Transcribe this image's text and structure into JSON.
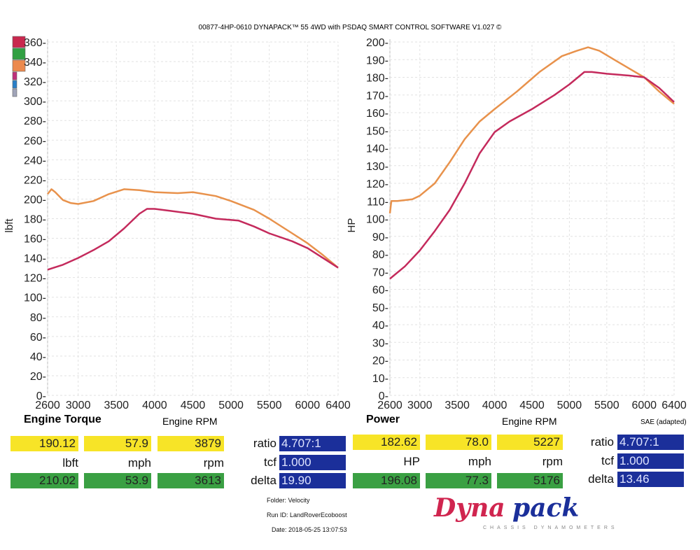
{
  "header": "00877-4HP-0610 DYNAPACK™ 55 4WD with PSDAQ SMART CONTROL SOFTWARE V1.027 ©",
  "colors": {
    "run1": "#c42a5c",
    "run2": "#e8924c",
    "yellow": "#f7e427",
    "green": "#3aa043",
    "blue": "#1b2f9a"
  },
  "legend_swatches": [
    "#c9284e",
    "#32a043",
    "#ec8a4e",
    "#c0307a",
    "#2a7fc8",
    "#a0a4b8"
  ],
  "chart_data": [
    {
      "type": "line",
      "title": "Engine Torque",
      "xlabel": "Engine RPM",
      "ylabel": "lbft",
      "xlim": [
        2600,
        6400
      ],
      "ylim": [
        0,
        360
      ],
      "xticks": [
        2600,
        3000,
        3500,
        4000,
        4500,
        5000,
        5500,
        6000,
        6400
      ],
      "yticks": [
        0,
        20,
        40,
        60,
        80,
        100,
        120,
        140,
        160,
        180,
        200,
        220,
        240,
        260,
        280,
        300,
        320,
        340,
        360
      ],
      "grid": true,
      "series": [
        {
          "color": "#e8924c",
          "x": [
            2600,
            2650,
            2700,
            2800,
            2900,
            3000,
            3200,
            3400,
            3600,
            3800,
            4000,
            4300,
            4500,
            4800,
            5000,
            5300,
            5500,
            5800,
            6000,
            6200,
            6400
          ],
          "y": [
            205,
            210,
            207,
            199,
            196,
            195,
            198,
            205,
            210,
            209,
            207,
            206,
            207,
            203,
            198,
            189,
            180,
            165,
            155,
            143,
            130
          ]
        },
        {
          "color": "#c42a5c",
          "x": [
            2600,
            2800,
            3000,
            3200,
            3400,
            3600,
            3800,
            3900,
            4000,
            4200,
            4500,
            4800,
            5100,
            5300,
            5500,
            5800,
            6000,
            6200,
            6400
          ],
          "y": [
            128,
            133,
            140,
            148,
            157,
            170,
            185,
            190,
            190,
            188,
            185,
            180,
            178,
            172,
            165,
            157,
            150,
            140,
            130
          ]
        }
      ]
    },
    {
      "type": "line",
      "title": "Power",
      "xlabel": "Engine RPM",
      "ylabel": "HP",
      "note": "SAE (adapted)",
      "xlim": [
        2600,
        6400
      ],
      "ylim": [
        0,
        200
      ],
      "xticks": [
        2600,
        3000,
        3500,
        4000,
        4500,
        5000,
        5500,
        6000,
        6400
      ],
      "yticks": [
        0,
        10,
        20,
        30,
        40,
        50,
        60,
        70,
        80,
        90,
        100,
        110,
        120,
        130,
        140,
        150,
        160,
        170,
        180,
        190,
        200
      ],
      "grid": true,
      "series": [
        {
          "color": "#e8924c",
          "x": [
            2600,
            2620,
            2700,
            2900,
            3000,
            3200,
            3400,
            3600,
            3800,
            4000,
            4300,
            4600,
            4900,
            5100,
            5250,
            5400,
            5600,
            5800,
            6000,
            6200,
            6400
          ],
          "y": [
            103,
            110,
            110,
            111,
            113,
            120,
            132,
            145,
            155,
            162,
            172,
            183,
            192,
            195,
            197,
            195,
            190,
            185,
            180,
            172,
            165
          ]
        },
        {
          "color": "#c42a5c",
          "x": [
            2600,
            2800,
            3000,
            3200,
            3400,
            3600,
            3800,
            4000,
            4200,
            4500,
            4800,
            5000,
            5200,
            5300,
            5500,
            5800,
            6000,
            6200,
            6400
          ],
          "y": [
            66,
            73,
            82,
            93,
            105,
            120,
            137,
            149,
            155,
            162,
            170,
            176,
            183,
            183,
            182,
            181,
            180,
            174,
            166
          ]
        }
      ]
    }
  ],
  "torque_panel": {
    "title": "Engine Torque",
    "rpm_label": "Engine RPM",
    "run1": {
      "value": "190.12",
      "mph": "57.9",
      "rpm": "3879"
    },
    "units": {
      "value": "lbft",
      "mph": "mph",
      "rpm": "rpm"
    },
    "run2": {
      "value": "210.02",
      "mph": "53.9",
      "rpm": "3613"
    },
    "ratio_label": "ratio",
    "ratio": "4.707:1",
    "tcf_label": "tcf",
    "tcf": "1.000",
    "delta_label": "delta",
    "delta": "19.90"
  },
  "power_panel": {
    "title": "Power",
    "rpm_label": "Engine RPM",
    "note": "SAE (adapted)",
    "run1": {
      "value": "182.62",
      "mph": "78.0",
      "rpm": "5227"
    },
    "units": {
      "value": "HP",
      "mph": "mph",
      "rpm": "rpm"
    },
    "run2": {
      "value": "196.08",
      "mph": "77.3",
      "rpm": "5176"
    },
    "ratio_label": "ratio",
    "ratio": "4.707:1",
    "tcf_label": "tcf",
    "tcf": "1.000",
    "delta_label": "delta",
    "delta": "13.46"
  },
  "run_info": {
    "folder": "Folder:  Velocity",
    "run_id": "Run ID:  LandRoverEcoboost",
    "date": "Date:  2018-05-25 13:07:53"
  },
  "logo": {
    "part1": "Dyna",
    "part2": "pack",
    "tagline": "CHASSIS   DYNAMOMETERS"
  }
}
